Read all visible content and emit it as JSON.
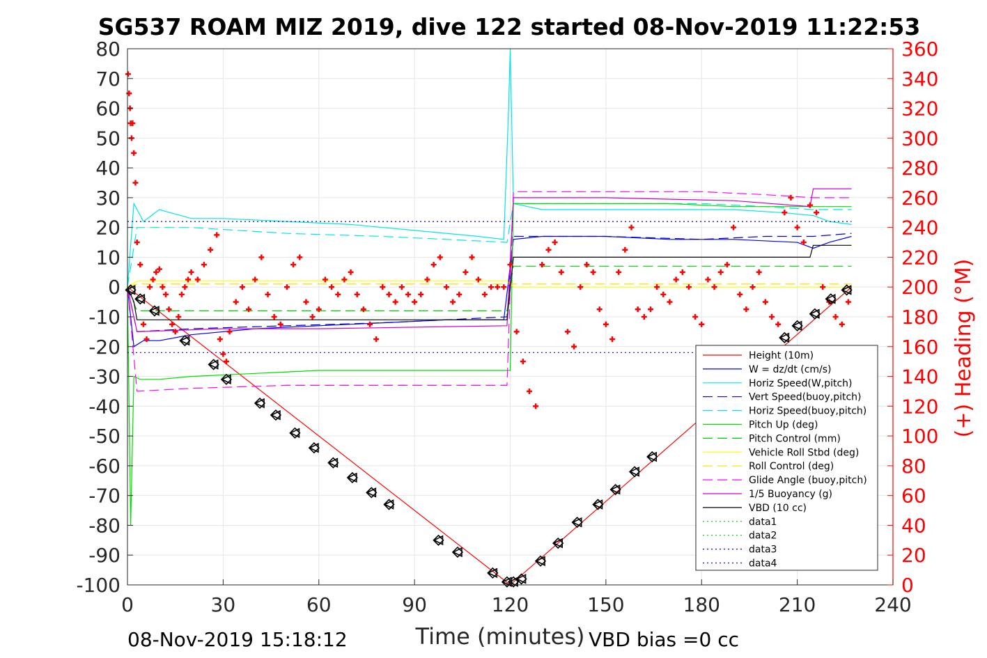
{
  "chart_data": {
    "type": "line",
    "title": "SG537 ROAM MIZ 2019, dive 122 started 08-Nov-2019 11:22:53",
    "xlabel": "Time (minutes)",
    "ylabel_right": "(+) Heading (°M)",
    "footer_left": "08-Nov-2019 15:18:12",
    "footer_right": "VBD bias =0 cc",
    "xlim": [
      0,
      240
    ],
    "ylim_left": [
      -100,
      80
    ],
    "ylim_right": [
      0,
      360
    ],
    "x_ticks": [
      "0",
      "30",
      "60",
      "90",
      "120",
      "150",
      "180",
      "210",
      "240"
    ],
    "y_ticks_left": [
      "80",
      "70",
      "60",
      "50",
      "40",
      "30",
      "20",
      "10",
      "0",
      "-10",
      "-20",
      "-30",
      "-40",
      "-50",
      "-60",
      "-70",
      "-80",
      "-90",
      "-100"
    ],
    "y_ticks_right": [
      "360",
      "340",
      "320",
      "300",
      "280",
      "260",
      "240",
      "220",
      "200",
      "180",
      "160",
      "140",
      "120",
      "100",
      "80",
      "60",
      "40",
      "20",
      "0"
    ],
    "grid": true,
    "legend_position": "bottom-right",
    "series": [
      {
        "name": "Height (10m)",
        "color": "#ff0000",
        "style": "solid",
        "x": [
          0,
          120,
          227
        ],
        "y": [
          0,
          -100,
          0
        ]
      },
      {
        "name": "W = dz/dt (cm/s)",
        "color": "#0000ff",
        "style": "solid",
        "x": [
          0,
          2,
          5,
          10,
          20,
          40,
          60,
          80,
          100,
          118,
          121,
          130,
          150,
          170,
          190,
          210,
          215,
          220,
          227
        ],
        "y": [
          0,
          -20,
          -18,
          -18,
          -16,
          -14,
          -13,
          -12,
          -11,
          -11,
          16,
          17,
          17,
          16,
          16,
          15,
          13,
          15,
          17
        ]
      },
      {
        "name": "Horiz Speed(W,pitch)",
        "color": "#00e5e5",
        "style": "solid",
        "x": [
          0,
          2,
          5,
          10,
          20,
          30,
          50,
          70,
          90,
          110,
          118,
          119.5,
          120,
          121,
          130,
          150,
          170,
          190,
          205,
          215,
          220,
          227
        ],
        "y": [
          0,
          28,
          22,
          26,
          23,
          23,
          22,
          21,
          19,
          17,
          16,
          60,
          80,
          28,
          26,
          26,
          26,
          26,
          25,
          24,
          22,
          21
        ]
      },
      {
        "name": "Vert Speed(buoy,pitch)",
        "color": "#0000cc",
        "style": "dashed",
        "x": [
          0,
          3,
          20,
          50,
          80,
          100,
          119,
          121,
          150,
          180,
          200,
          215,
          227
        ],
        "y": [
          0,
          -15,
          -14,
          -13,
          -12,
          -11,
          -10,
          17,
          17,
          16,
          17,
          17,
          18
        ]
      },
      {
        "name": "Horiz Speed(buoy,pitch)",
        "color": "#00e5e5",
        "style": "dashed",
        "x": [
          0,
          3,
          20,
          50,
          80,
          100,
          119,
          121,
          150,
          180,
          200,
          215,
          227
        ],
        "y": [
          0,
          20,
          20,
          18,
          17,
          16,
          15,
          28,
          28,
          28,
          27,
          26,
          26
        ]
      },
      {
        "name": "Pitch Up (deg)",
        "color": "#00dd00",
        "style": "solid",
        "x": [
          0,
          1,
          2,
          4,
          10,
          20,
          40,
          60,
          80,
          100,
          118,
          120,
          121,
          130,
          150,
          170,
          190,
          200,
          210,
          220,
          227
        ],
        "y": [
          0,
          -80,
          -30,
          -31,
          -31,
          -30,
          -29,
          -28,
          -28,
          -28,
          -28,
          -28,
          28,
          28,
          28,
          28,
          27,
          27,
          27,
          27,
          27
        ]
      },
      {
        "name": "Pitch Control (mm)",
        "color": "#00cc00",
        "style": "dashed",
        "x": [
          0,
          3,
          60,
          119,
          121,
          180,
          227
        ],
        "y": [
          0,
          -8,
          -8,
          -8,
          7,
          7,
          7
        ]
      },
      {
        "name": "Vehicle Roll Stbd (deg)",
        "color": "#ffff00",
        "style": "solid",
        "x": [
          0,
          3,
          50,
          100,
          119,
          121,
          180,
          227
        ],
        "y": [
          0,
          2,
          2,
          2,
          2,
          0,
          0,
          0
        ]
      },
      {
        "name": "Roll Control (deg)",
        "color": "#ffdd00",
        "style": "dashed",
        "x": [
          0,
          3,
          60,
          119,
          121,
          180,
          227
        ],
        "y": [
          0,
          1,
          1,
          1,
          1,
          1,
          1
        ]
      },
      {
        "name": "Glide Angle (buoy,pitch)",
        "color": "#ff00ff",
        "style": "dashed",
        "x": [
          0,
          3,
          20,
          50,
          80,
          100,
          119,
          121,
          150,
          180,
          200,
          215,
          227
        ],
        "y": [
          0,
          -35,
          -34,
          -33,
          -33,
          -33,
          -33,
          32,
          32,
          32,
          31,
          30,
          30
        ]
      },
      {
        "name": "1/5 Buoyancy (g)",
        "color": "#cc00cc",
        "style": "solid",
        "x": [
          0,
          3,
          30,
          60,
          119,
          121,
          150,
          190,
          214,
          215,
          227
        ],
        "y": [
          0,
          -15,
          -14,
          -14,
          -13,
          30,
          30,
          29,
          27,
          33,
          33
        ]
      },
      {
        "name": "VBD (10 cc)",
        "color": "#000000",
        "style": "solid",
        "x": [
          0,
          2,
          3,
          60,
          119,
          121,
          150,
          200,
          214,
          215,
          227
        ],
        "y": [
          0,
          -5,
          -11,
          -11,
          -11,
          10,
          10,
          10,
          10,
          14,
          14
        ]
      },
      {
        "name": "data1",
        "color": "#00cc00",
        "style": "dotted",
        "x": [],
        "y": []
      },
      {
        "name": "data2",
        "color": "#00cc00",
        "style": "dotted",
        "x": [],
        "y": []
      },
      {
        "name": "data3",
        "color": "#0000cc",
        "style": "dotted",
        "x": [
          0,
          227
        ],
        "y": [
          22,
          22
        ]
      },
      {
        "name": "data4",
        "color": "#0000cc",
        "style": "dotted",
        "x": [
          0,
          227
        ],
        "y": [
          -22,
          -22
        ]
      }
    ],
    "heading": {
      "axis": "right",
      "color": "#ff0000",
      "marker": "+",
      "x": [
        0.2,
        0.5,
        0.8,
        1.0,
        1.3,
        1.6,
        2,
        2.5,
        3,
        4,
        5,
        6,
        7,
        8,
        9,
        10,
        11,
        12,
        13,
        14,
        15,
        16,
        17,
        18,
        19,
        20,
        22,
        24,
        26,
        28,
        29,
        30,
        31,
        32,
        34,
        36,
        38,
        40,
        42,
        44,
        46,
        48,
        50,
        52,
        54,
        56,
        58,
        60,
        62,
        64,
        66,
        68,
        70,
        72,
        74,
        76,
        78,
        80,
        82,
        84,
        86,
        88,
        90,
        92,
        94,
        96,
        98,
        100,
        102,
        104,
        106,
        108,
        110,
        112,
        114,
        116,
        118,
        120,
        122,
        124,
        126,
        128,
        130,
        132,
        134,
        136,
        138,
        140,
        142,
        144,
        146,
        148,
        150,
        152,
        154,
        156,
        158,
        160,
        162,
        164,
        166,
        168,
        170,
        172,
        174,
        176,
        178,
        180,
        182,
        184,
        186,
        188,
        190,
        192,
        194,
        196,
        198,
        200,
        202,
        204,
        206,
        208,
        210,
        212,
        214,
        216,
        218,
        220,
        222,
        224,
        226
      ],
      "y": [
        343,
        330,
        320,
        310,
        300,
        310,
        290,
        270,
        230,
        215,
        175,
        165,
        200,
        205,
        210,
        212,
        200,
        195,
        185,
        175,
        170,
        180,
        195,
        200,
        205,
        210,
        205,
        215,
        225,
        235,
        165,
        155,
        150,
        170,
        190,
        200,
        185,
        205,
        220,
        195,
        180,
        175,
        200,
        215,
        220,
        190,
        180,
        185,
        205,
        200,
        195,
        205,
        210,
        195,
        185,
        175,
        165,
        200,
        195,
        190,
        200,
        195,
        190,
        195,
        205,
        215,
        220,
        200,
        190,
        195,
        210,
        220,
        205,
        195,
        200,
        200,
        200,
        215,
        170,
        150,
        130,
        120,
        215,
        225,
        230,
        210,
        170,
        160,
        200,
        215,
        210,
        185,
        175,
        165,
        210,
        225,
        240,
        185,
        180,
        185,
        200,
        195,
        190,
        205,
        210,
        200,
        180,
        175,
        205,
        200,
        210,
        215,
        240,
        195,
        185,
        200,
        210,
        190,
        180,
        175,
        250,
        260,
        240,
        230,
        255,
        250,
        200,
        190,
        180,
        175,
        190
      ]
    },
    "dive_markers": {
      "x": [
        1,
        4,
        8.5,
        18,
        27,
        31,
        41.5,
        46.5,
        52.5,
        58.5,
        64.5,
        70.5,
        76.5,
        82,
        97.5,
        103.5,
        114.5,
        119,
        121,
        123.5,
        129.5,
        135,
        141,
        147.5,
        153,
        159,
        164.5,
        206,
        210,
        215.5,
        220.5,
        225.5
      ],
      "y": [
        -1,
        -4,
        -8,
        -18,
        -26,
        -31,
        -39,
        -43,
        -49,
        -54,
        -59,
        -64,
        -69,
        -73,
        -85,
        -89,
        -96,
        -99,
        -99,
        -98,
        -92,
        -86,
        -79,
        -73,
        -68,
        -62,
        -57,
        -17,
        -13,
        -9,
        -4,
        -1
      ]
    }
  }
}
